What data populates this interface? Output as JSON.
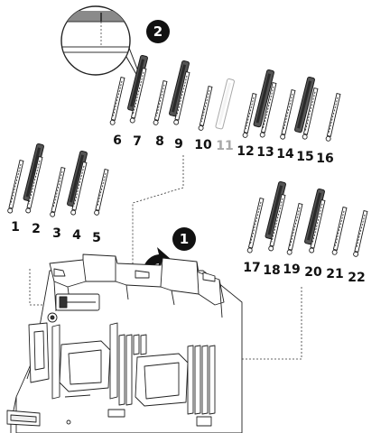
{
  "callouts": [
    "2",
    "1"
  ],
  "slot_groups": [
    {
      "name": "top",
      "labels": [
        "6",
        "7",
        "8",
        "9",
        "10",
        "11",
        "12",
        "13",
        "14",
        "15",
        "16"
      ]
    },
    {
      "name": "left",
      "labels": [
        "1",
        "2",
        "3",
        "4",
        "5"
      ]
    },
    {
      "name": "right",
      "labels": [
        "17",
        "18",
        "19",
        "20",
        "21",
        "22"
      ]
    }
  ],
  "colors": {
    "ink": "#1a1a1a",
    "dim": "#a8a8a8",
    "dimm_fill": "#555555"
  }
}
